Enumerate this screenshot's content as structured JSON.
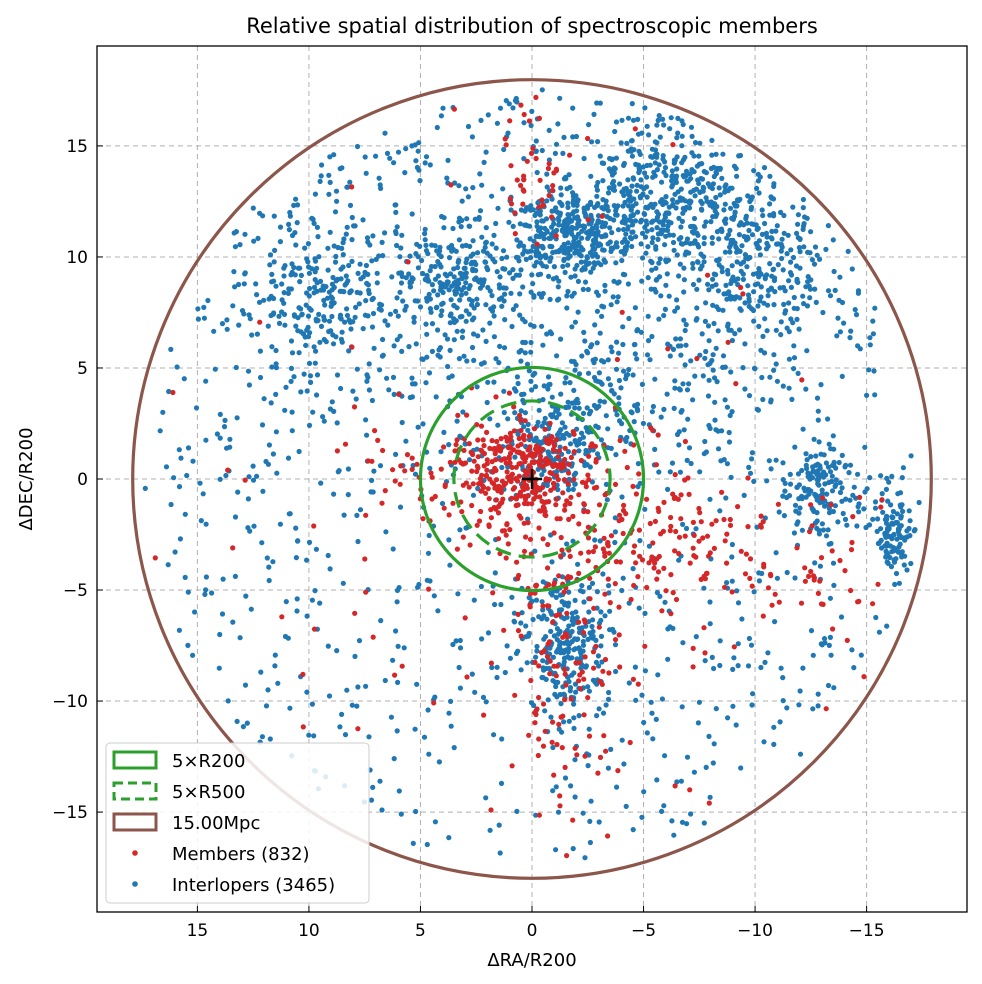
{
  "chart_data": {
    "type": "scatter",
    "title": "Relative spatial distribution of spectroscopic members",
    "xlabel": "ΔRA/R200",
    "ylabel": "ΔDEC/R200",
    "xlim": [
      19.5,
      -19.5
    ],
    "ylim": [
      -19.5,
      19.5
    ],
    "x_inverted": true,
    "grid": true,
    "legend_placement": "lower-left",
    "xticks": [
      {
        "value": 15,
        "label": "15"
      },
      {
        "value": 10,
        "label": "10"
      },
      {
        "value": 5,
        "label": "5"
      },
      {
        "value": 0,
        "label": "0"
      },
      {
        "value": -5,
        "label": "−5"
      },
      {
        "value": -10,
        "label": "−10"
      },
      {
        "value": -15,
        "label": "−15"
      }
    ],
    "yticks": [
      {
        "value": 15,
        "label": "15"
      },
      {
        "value": 10,
        "label": "10"
      },
      {
        "value": 5,
        "label": "5"
      },
      {
        "value": 0,
        "label": "0"
      },
      {
        "value": -5,
        "label": "−5"
      },
      {
        "value": -10,
        "label": "−10"
      },
      {
        "value": -15,
        "label": "−15"
      }
    ],
    "circles": [
      {
        "name": "5×R200",
        "radius": 5.0,
        "color": "#2ca02c",
        "style": "solid"
      },
      {
        "name": "5×R500",
        "radius": 3.5,
        "color": "#2ca02c",
        "style": "dashed"
      },
      {
        "name": "15.00Mpc",
        "radius": 17.9,
        "color": "#8c564b",
        "style": "solid"
      }
    ],
    "center_marker": {
      "x": 0,
      "y": 0,
      "symbol": "+",
      "color": "#000000"
    },
    "series": [
      {
        "name": "Members (832)",
        "color": "#d62728",
        "count": 832,
        "clusters": [
          {
            "x": 0.5,
            "y": 0.5,
            "sx": 1.2,
            "sy": 1.0,
            "w": 0.32
          },
          {
            "x": -1.5,
            "y": -1.5,
            "sx": 2.5,
            "sy": 2.5,
            "w": 0.18
          },
          {
            "x": -5.0,
            "y": -3.0,
            "sx": 2.0,
            "sy": 1.6,
            "w": 0.12
          },
          {
            "x": -1.5,
            "y": -9.0,
            "sx": 1.2,
            "sy": 3.5,
            "w": 0.12
          },
          {
            "x": 4.0,
            "y": 0.5,
            "sx": 2.0,
            "sy": 1.5,
            "w": 0.08
          },
          {
            "x": -12.0,
            "y": -3.5,
            "sx": 2.2,
            "sy": 2.0,
            "w": 0.08
          },
          {
            "x": 0.2,
            "y": 14.0,
            "sx": 0.7,
            "sy": 2.0,
            "w": 0.05
          },
          {
            "x": 2.0,
            "y": -7.0,
            "sx": 5.0,
            "sy": 5.0,
            "w": 0.05
          }
        ],
        "uniform_fraction": 0.05
      },
      {
        "name": "Interlopers (3465)",
        "color": "#1f77b4",
        "count": 3465,
        "clusters": [
          {
            "x": -1.5,
            "y": 11.0,
            "sx": 1.2,
            "sy": 1.0,
            "w": 0.08
          },
          {
            "x": -4.5,
            "y": 12.5,
            "sx": 1.5,
            "sy": 2.0,
            "w": 0.07
          },
          {
            "x": -10.0,
            "y": 9.5,
            "sx": 1.5,
            "sy": 1.5,
            "w": 0.06
          },
          {
            "x": 3.5,
            "y": 9.0,
            "sx": 1.5,
            "sy": 1.0,
            "w": 0.05
          },
          {
            "x": 9.5,
            "y": 8.0,
            "sx": 1.5,
            "sy": 1.5,
            "w": 0.05
          },
          {
            "x": -7.5,
            "y": 13.0,
            "sx": 1.5,
            "sy": 1.5,
            "w": 0.05
          },
          {
            "x": -1.5,
            "y": -7.5,
            "sx": 1.0,
            "sy": 1.5,
            "w": 0.07
          },
          {
            "x": -13.0,
            "y": -0.5,
            "sx": 1.0,
            "sy": 1.0,
            "w": 0.04
          },
          {
            "x": -16.3,
            "y": -2.5,
            "sx": 0.5,
            "sy": 1.0,
            "w": 0.03
          },
          {
            "x": -1.0,
            "y": 1.0,
            "sx": 1.2,
            "sy": 1.2,
            "w": 0.04
          },
          {
            "x": 0.0,
            "y": 9.0,
            "sx": 9.0,
            "sy": 4.5,
            "w": 0.15
          },
          {
            "x": -3.0,
            "y": 4.0,
            "sx": 2.5,
            "sy": 2.0,
            "w": 0.05
          }
        ],
        "uniform_fraction": 0.26
      }
    ]
  }
}
